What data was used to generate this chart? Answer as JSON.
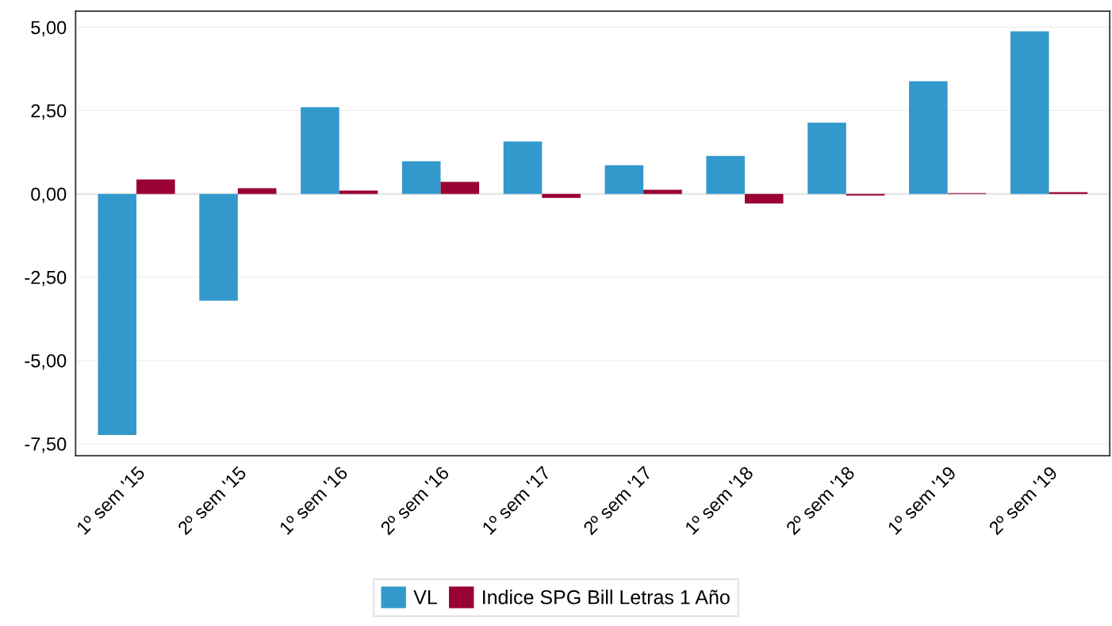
{
  "chart_data": {
    "type": "bar",
    "categories": [
      "1º sem '15",
      "2º sem '15",
      "1º sem '16",
      "2º sem '16",
      "1º sem '17",
      "2º sem '17",
      "1º sem '18",
      "2º sem '18",
      "1º sem '19",
      "2º sem '19"
    ],
    "series": [
      {
        "name": "VL",
        "color": "#3399cc",
        "values": [
          -7.24,
          -3.21,
          2.6,
          0.98,
          1.57,
          0.86,
          1.14,
          2.14,
          3.38,
          4.88
        ]
      },
      {
        "name": "Indice SPG Bill Letras 1 Año",
        "color": "#990033",
        "values": [
          0.43,
          0.17,
          0.1,
          0.36,
          -0.12,
          0.12,
          -0.29,
          -0.05,
          0.02,
          0.05
        ]
      }
    ],
    "ylim": [
      -7.86,
      5.48
    ],
    "yticks": [
      {
        "value": -7.5,
        "label": "-7,50"
      },
      {
        "value": -5,
        "label": "-5,00"
      },
      {
        "value": -2.5,
        "label": "-2,50"
      },
      {
        "value": 0,
        "label": "0,00"
      },
      {
        "value": 2.5,
        "label": "2,50"
      },
      {
        "value": 5,
        "label": "5,00"
      }
    ],
    "ref_lines": [
      {
        "axis": "y",
        "value": 0,
        "color": "#bbbbbb"
      }
    ],
    "grid": "y",
    "legend": "bottom"
  }
}
